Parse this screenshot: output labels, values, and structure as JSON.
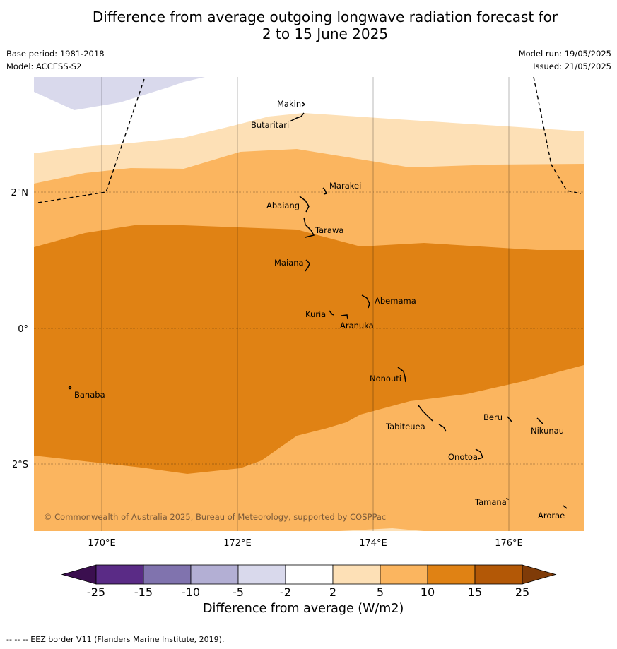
{
  "title_line1": "Difference from average outgoing longwave radiation forecast for",
  "title_line2": "2 to 15 June 2025",
  "meta": {
    "base_period": "Base period: 1981-2018",
    "model": "Model: ACCESS-S2",
    "model_run": "Model run: 19/05/2025",
    "issued": "Issued: 21/05/2025"
  },
  "map": {
    "lat_labels": [
      "2°N",
      "0°",
      "2°S"
    ],
    "lon_labels": [
      "170°E",
      "172°E",
      "174°E",
      "176°E"
    ],
    "places": [
      "Makin",
      "Butaritari",
      "Marakei",
      "Abaiang",
      "Tarawa",
      "Maiana",
      "Abemama",
      "Kuria",
      "Aranuka",
      "Nonouti",
      "Banaba",
      "Tabiteuea",
      "Beru",
      "Nikunau",
      "Onotoa",
      "Tamana",
      "Arorae"
    ],
    "copyright": "© Commonwealth of Australia 2025, Bureau of Meteorology, supported by COSPPac"
  },
  "colorbar": {
    "title": "Difference from average (W/m2)",
    "ticks": [
      "-25",
      "-15",
      "-10",
      "-5",
      "-2",
      "2",
      "5",
      "10",
      "15",
      "25"
    ],
    "colors": [
      "#3b0f4f",
      "#5a2b86",
      "#8073ae",
      "#b3afd4",
      "#d9d9ec",
      "#ffffff",
      "#fde0b6",
      "#fbb55f",
      "#e08214",
      "#b35806",
      "#7f3b08"
    ]
  },
  "footnote": "--  --  -- EEZ border V11 (Flanders Marine Institute, 2019)."
}
